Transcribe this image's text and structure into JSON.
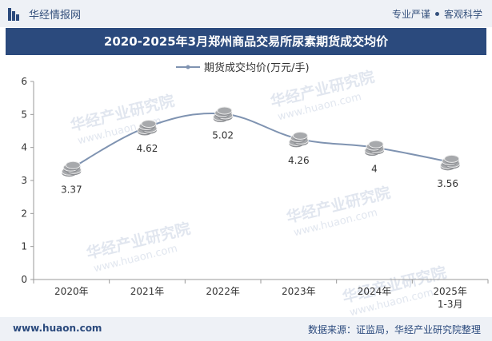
{
  "header": {
    "brand": "华经情报网",
    "tag1": "专业严谨",
    "tag2": "客观科学"
  },
  "footer": {
    "site": "www.huaon.com",
    "source": "数据来源：证监局，华经产业研究院整理"
  },
  "watermark": {
    "text": "华经产业研究院",
    "url": "www.huaon.com"
  },
  "colors": {
    "title_bg": "#2b4a7d",
    "line": "#7f93b1",
    "coin": "#a7a9ac"
  },
  "chart_data": {
    "type": "line",
    "title": "2020-2025年3月郑州商品交易所尿素期货成交均价",
    "categories": [
      "2020年",
      "2021年",
      "2022年",
      "2023年",
      "2024年",
      "2025年\n1-3月"
    ],
    "series": [
      {
        "name": "期货成交均价(万元/手)",
        "values": [
          3.37,
          4.62,
          5.02,
          4.26,
          4,
          3.56
        ]
      }
    ],
    "data_labels": [
      "3.37",
      "4.62",
      "5.02",
      "4.26",
      "4",
      "3.56"
    ],
    "ylim": [
      0,
      6
    ],
    "yticks": [
      "0",
      "1",
      "2",
      "3",
      "4",
      "5",
      "6"
    ],
    "legend_position": "top-center",
    "grid": false
  }
}
